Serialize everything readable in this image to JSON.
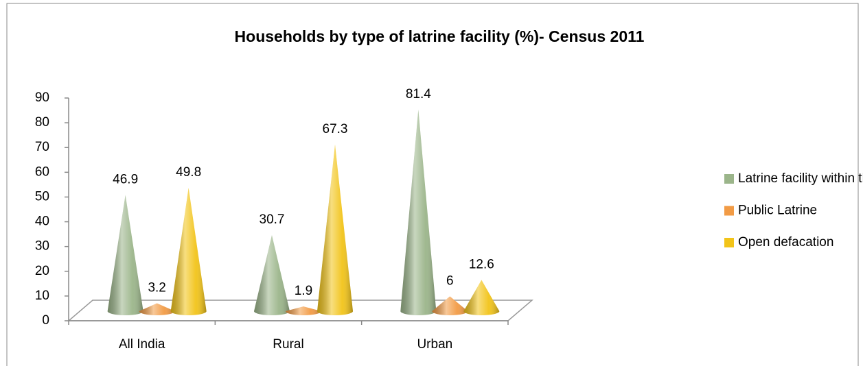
{
  "chart_data": {
    "type": "cone",
    "title": "Households by type of latrine facility (%)- Census 2011",
    "categories": [
      "All India",
      "Rural",
      "Urban"
    ],
    "series": [
      {
        "name": "Latrine facility within the premises",
        "color": "#9bb58a",
        "values": [
          46.9,
          30.7,
          81.4
        ]
      },
      {
        "name": "Public Latrine",
        "color": "#f29b45",
        "values": [
          3.2,
          1.9,
          6
        ]
      },
      {
        "name": "Open defacation",
        "color": "#f2c419",
        "values": [
          49.8,
          67.3,
          12.6
        ]
      }
    ],
    "ylim": [
      0,
      90
    ],
    "yticks": [
      0,
      10,
      20,
      30,
      40,
      50,
      60,
      70,
      80,
      90
    ],
    "legend": "right"
  }
}
